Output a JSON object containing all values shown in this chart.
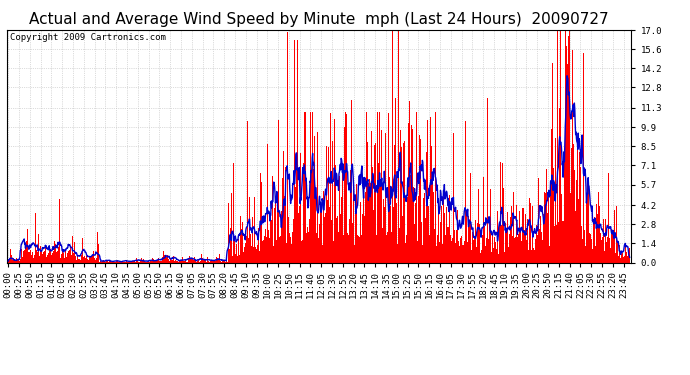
{
  "title": "Actual and Average Wind Speed by Minute  mph (Last 24 Hours)  20090727",
  "copyright": "Copyright 2009 Cartronics.com",
  "yticks": [
    0.0,
    1.4,
    2.8,
    4.2,
    5.7,
    7.1,
    8.5,
    9.9,
    11.3,
    12.8,
    14.2,
    15.6,
    17.0
  ],
  "ymax": 17.0,
  "ymin": 0.0,
  "bar_color": "#ff0000",
  "line_color": "#0000cc",
  "background_color": "#ffffff",
  "grid_color": "#bbbbbb",
  "title_fontsize": 11,
  "copyright_fontsize": 6.5,
  "tick_fontsize": 6.5
}
